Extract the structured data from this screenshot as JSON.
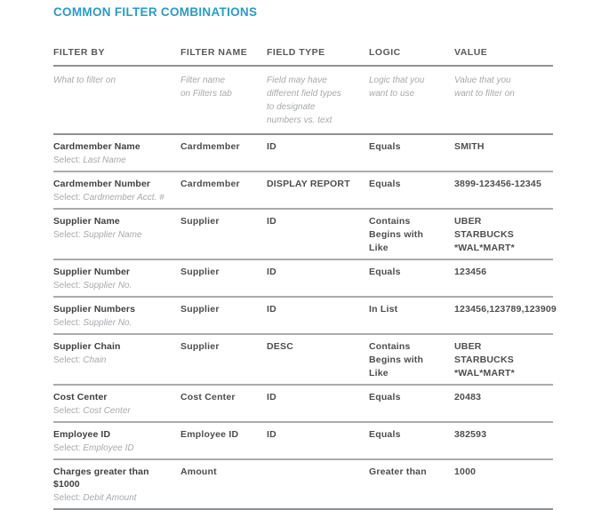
{
  "page": {
    "title": "COMMON FILTER COMBINATIONS"
  },
  "colors": {
    "title_accent": "#2a9bc1",
    "heading_text": "#58595b",
    "body_text": "#414042",
    "muted_text": "#a7a9ac",
    "rule_dark": "#8f9194",
    "rule_light": "#ababae"
  },
  "table": {
    "select_prefix": "Select:",
    "columns": [
      {
        "label": "FILTER BY",
        "description": "What to filter on"
      },
      {
        "label": "FILTER NAME",
        "description": "Filter name\non Filters tab"
      },
      {
        "label": "FIELD TYPE",
        "description": "Field may have\ndifferent field types\nto designate\nnumbers vs. text"
      },
      {
        "label": "LOGIC",
        "description": "Logic that you\nwant to use"
      },
      {
        "label": "VALUE",
        "description": "Value that you\nwant to filter on"
      }
    ],
    "rows": [
      {
        "filter_by": "Cardmember Name",
        "select": "Last Name",
        "filter_name": "Cardmember",
        "field_type": "ID",
        "logic": [
          "Equals"
        ],
        "value": [
          "SMITH"
        ]
      },
      {
        "filter_by": "Cardmember Number",
        "select": "Cardmember Acct. #",
        "filter_name": "Cardmember",
        "field_type": "DISPLAY REPORT",
        "logic": [
          "Equals"
        ],
        "value": [
          "3899-123456-12345"
        ]
      },
      {
        "filter_by": "Supplier Name",
        "select": "Supplier Name",
        "filter_name": "Supplier",
        "field_type": "ID",
        "logic": [
          "Contains",
          "Begins with",
          "Like"
        ],
        "value": [
          "UBER",
          "STARBUCKS",
          "*WAL*MART*"
        ]
      },
      {
        "filter_by": "Supplier Number",
        "select": "Supplier No.",
        "filter_name": "Supplier",
        "field_type": "ID",
        "logic": [
          "Equals"
        ],
        "value": [
          "123456"
        ]
      },
      {
        "filter_by": "Supplier Numbers",
        "select": "Supplier No.",
        "filter_name": "Supplier",
        "field_type": "ID",
        "logic": [
          "In List"
        ],
        "value": [
          "123456,123789,123909"
        ]
      },
      {
        "filter_by": "Supplier Chain",
        "select": "Chain",
        "filter_name": "Supplier",
        "field_type": "DESC",
        "logic": [
          "Contains",
          "Begins with",
          "Like"
        ],
        "value": [
          "UBER",
          "STARBUCKS",
          "*WAL*MART*"
        ]
      },
      {
        "filter_by": "Cost Center",
        "select": "Cost Center",
        "filter_name": "Cost Center",
        "field_type": "ID",
        "logic": [
          "Equals"
        ],
        "value": [
          "20483"
        ]
      },
      {
        "filter_by": "Employee ID",
        "select": "Employee ID",
        "filter_name": "Employee ID",
        "field_type": "ID",
        "logic": [
          "Equals"
        ],
        "value": [
          "382593"
        ]
      },
      {
        "filter_by": "Charges greater than $1000",
        "select": "Debit Amount",
        "filter_name": "Amount",
        "field_type": "",
        "logic": [
          "Greater than"
        ],
        "value": [
          "1000"
        ]
      }
    ]
  }
}
